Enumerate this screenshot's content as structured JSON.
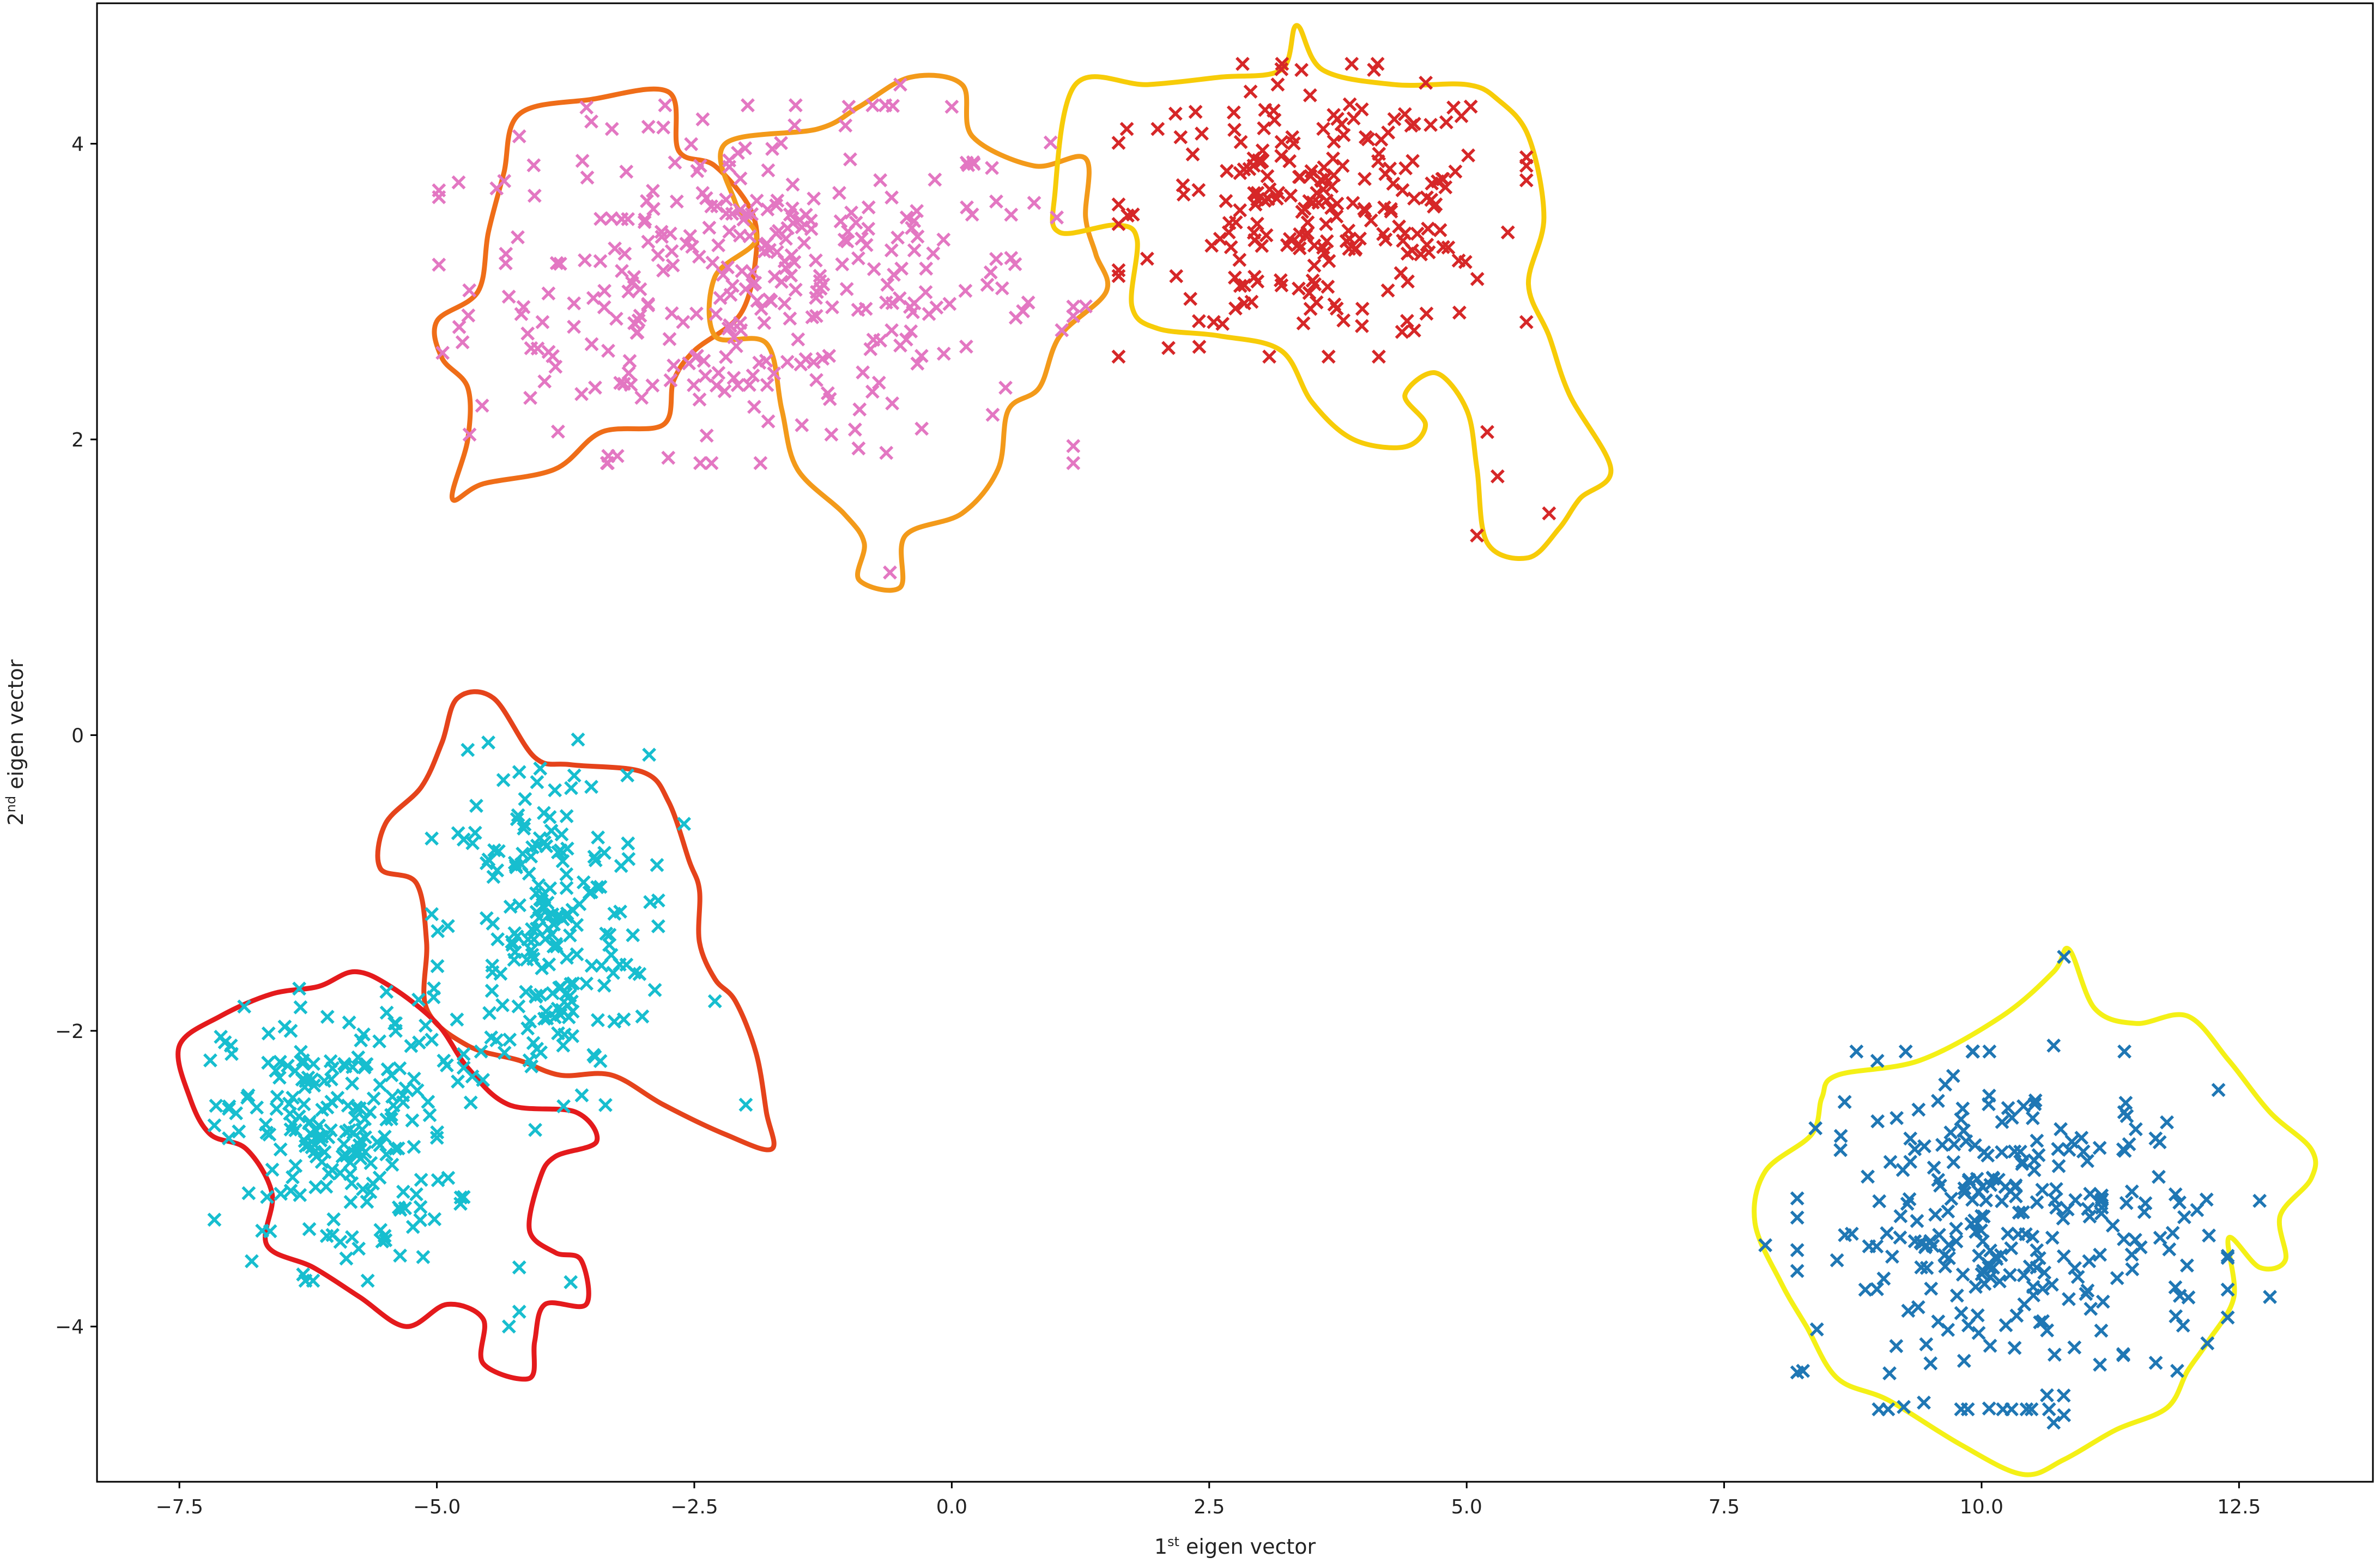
{
  "chart_data": {
    "type": "scatter",
    "title": "",
    "xlabel": {
      "base": "1",
      "sup": "st",
      "rest": " eigen vector"
    },
    "ylabel": {
      "base": "2",
      "sup": "nd",
      "rest": " eigen vector"
    },
    "xlim": [
      -8.3,
      13.8
    ],
    "ylim": [
      -5.05,
      4.95
    ],
    "xticks": [
      -7.5,
      -5.0,
      -2.5,
      0.0,
      2.5,
      5.0,
      7.5,
      10.0,
      12.5
    ],
    "xtick_labels": [
      "−7.5",
      "−5.0",
      "−2.5",
      "0.0",
      "2.5",
      "5.0",
      "7.5",
      "10.0",
      "12.5"
    ],
    "yticks": [
      -4,
      -2,
      0,
      2,
      4
    ],
    "ytick_labels": [
      "−4",
      "−2",
      "0",
      "2",
      "4"
    ],
    "grid": false,
    "marker": "x",
    "series": [
      {
        "color": "#e377c2",
        "center": [
          -1.9,
          3.05
        ],
        "spread": [
          1.4,
          0.55
        ],
        "count": 340,
        "x": [
          -4.2,
          -3.5,
          -3.3,
          -1.0,
          -0.5,
          0.0,
          0.8,
          -2.7,
          -0.6,
          1.3
        ],
        "y": [
          4.05,
          4.15,
          4.1,
          4.25,
          4.4,
          4.25,
          3.6,
          2.5,
          1.1,
          2.9
        ]
      },
      {
        "color": "#d62728",
        "center": [
          3.6,
          3.55
        ],
        "spread": [
          0.9,
          0.45
        ],
        "count": 230,
        "x": [
          4.1,
          5.4,
          5.2,
          5.3,
          5.8,
          5.1,
          2.4,
          4.4,
          1.7,
          2.0
        ],
        "y": [
          4.5,
          3.4,
          2.05,
          1.75,
          1.5,
          1.35,
          2.8,
          4.2,
          4.1,
          4.1
        ]
      },
      {
        "color": "#17becf",
        "center": [
          -3.95,
          -1.35
        ],
        "spread": [
          0.5,
          0.6
        ],
        "count": 200,
        "x": [
          -4.7,
          -4.5,
          -2.6,
          -2.0,
          -2.3,
          -3.5,
          -4.2,
          -4.1
        ],
        "y": [
          -0.1,
          -0.05,
          -0.6,
          -2.5,
          -1.8,
          -0.35,
          -0.25,
          -2.2
        ]
      },
      {
        "color": "#17becf",
        "center": [
          -5.95,
          -2.7
        ],
        "spread": [
          0.55,
          0.45
        ],
        "count": 210,
        "x": [
          -7.2,
          -7.0,
          -3.7,
          -4.3,
          -4.2,
          -4.2,
          -5.4,
          -6.3
        ],
        "y": [
          -2.2,
          -2.1,
          -3.7,
          -4.0,
          -3.9,
          -3.6,
          -2.0,
          -2.2
        ]
      },
      {
        "color": "#1f77b4",
        "center": [
          10.3,
          -3.35
        ],
        "spread": [
          0.95,
          0.55
        ],
        "count": 280,
        "x": [
          10.8,
          7.9,
          12.7,
          12.8,
          10.8,
          10.7,
          12.3,
          10.7,
          11.9
        ],
        "y": [
          -1.5,
          -3.45,
          -3.15,
          -3.8,
          -4.6,
          -2.1,
          -2.4,
          -4.65,
          -4.3
        ]
      }
    ],
    "regions": [
      {
        "color": "#ef6d18"
      },
      {
        "color": "#f39a1a"
      },
      {
        "color": "#f7cc08"
      },
      {
        "color": "#e5431b"
      },
      {
        "color": "#e41a1c"
      },
      {
        "color": "#f4f016"
      }
    ]
  }
}
